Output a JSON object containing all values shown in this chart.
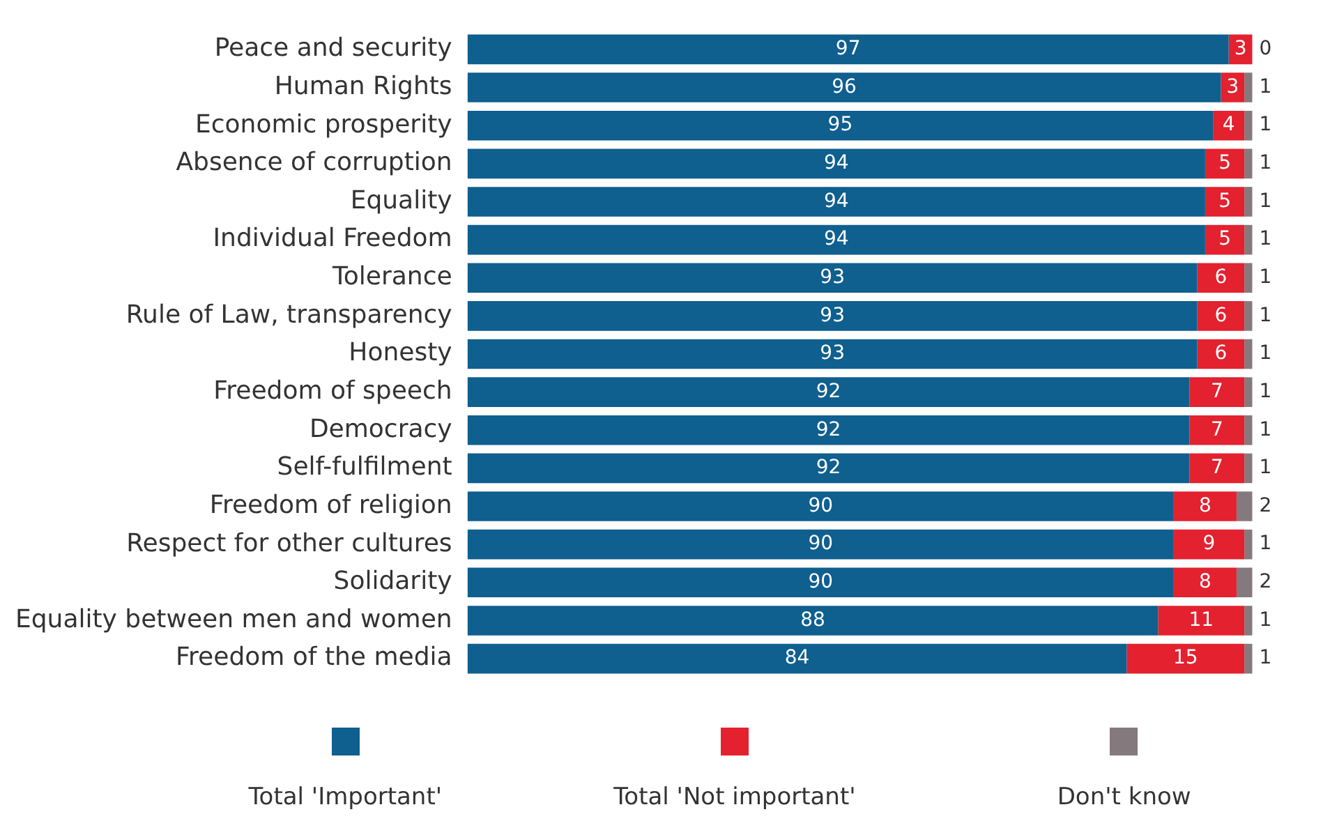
{
  "chart_data": {
    "type": "bar",
    "orientation": "horizontal",
    "stacked": true,
    "categories": [
      "Peace and security",
      "Human Rights",
      "Economic prosperity",
      "Absence of corruption",
      "Equality",
      "Individual Freedom",
      "Tolerance",
      "Rule of Law, transparency",
      "Honesty",
      "Freedom of speech",
      "Democracy",
      "Self-fulfilment",
      "Freedom of religion",
      "Respect for other cultures",
      "Solidarity",
      "Equality between men and women",
      "Freedom of the media"
    ],
    "series": [
      {
        "name": "Total 'Important'",
        "color": "#0f5f8f",
        "values": [
          97,
          96,
          95,
          94,
          94,
          94,
          93,
          93,
          93,
          92,
          92,
          92,
          90,
          90,
          90,
          88,
          84
        ]
      },
      {
        "name": "Total 'Not important'",
        "color": "#e3212f",
        "values": [
          3,
          3,
          4,
          5,
          5,
          5,
          6,
          6,
          6,
          7,
          7,
          7,
          8,
          9,
          8,
          11,
          15
        ]
      },
      {
        "name": "Don't know",
        "color": "#847a7e",
        "values": [
          0,
          1,
          1,
          1,
          1,
          1,
          1,
          1,
          1,
          1,
          1,
          1,
          2,
          1,
          2,
          1,
          1
        ]
      }
    ],
    "data_labels": true,
    "tick_labels": "y",
    "legend": "bottom"
  }
}
